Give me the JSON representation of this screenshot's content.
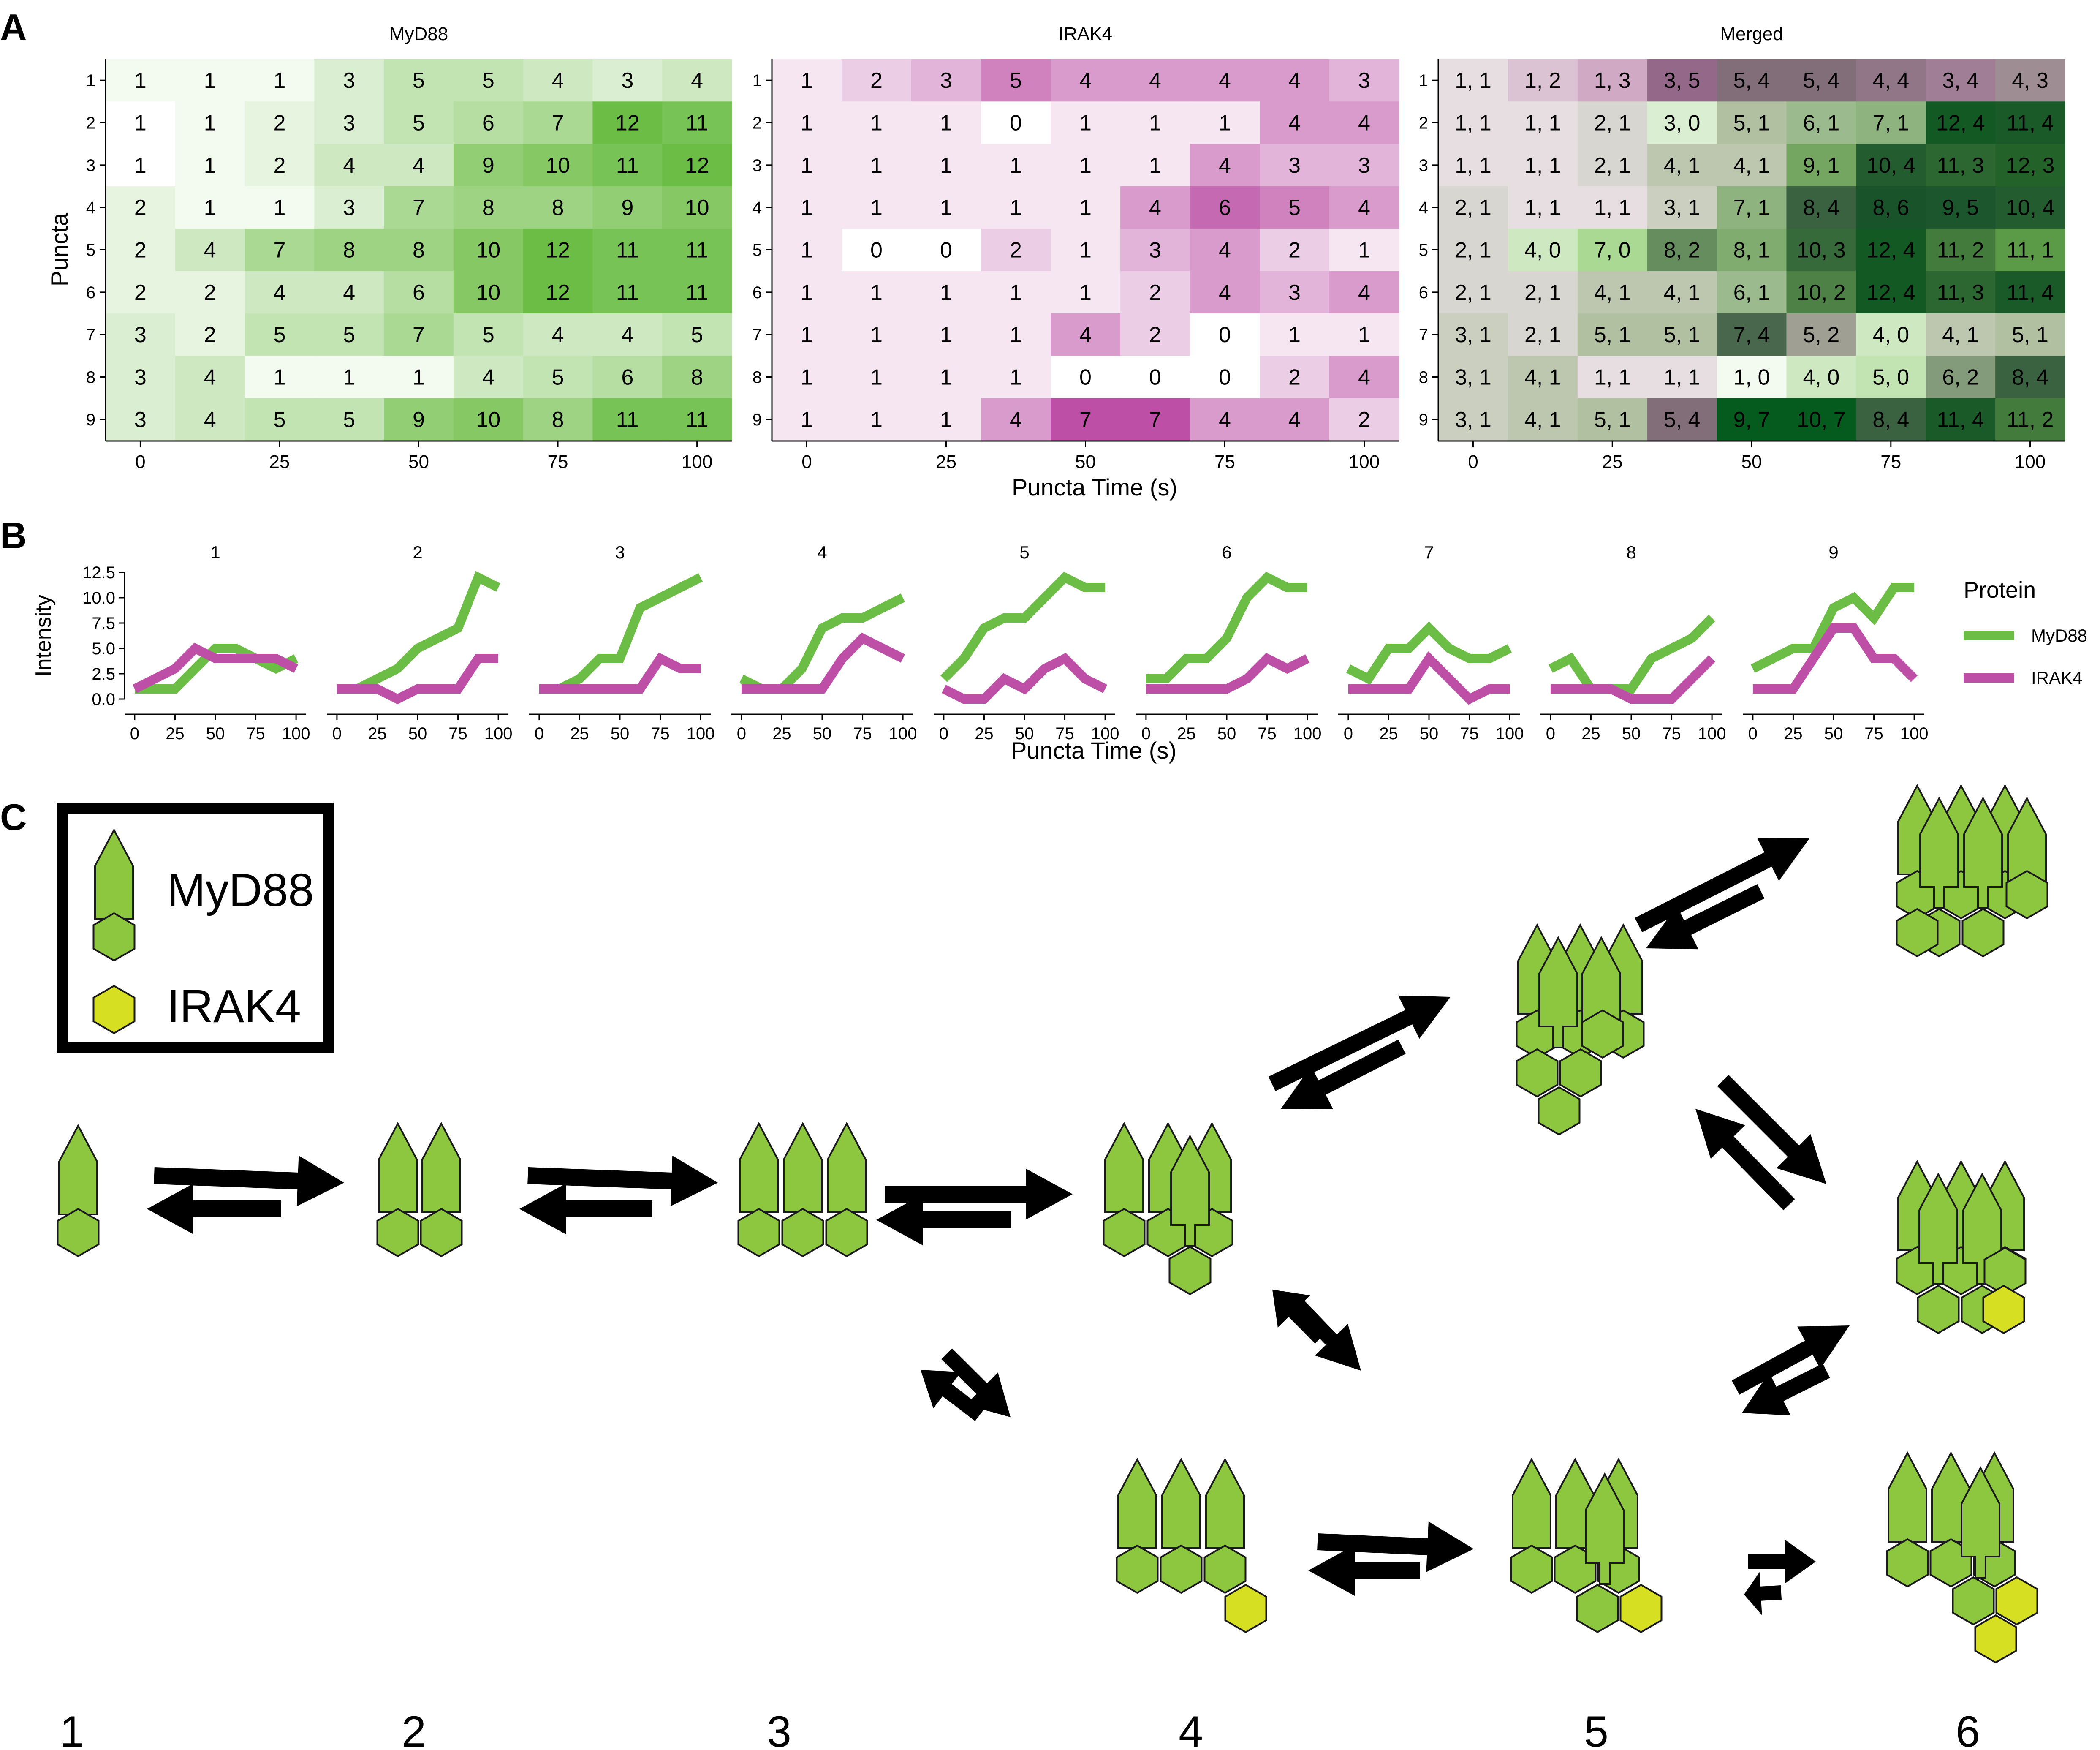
{
  "panels": {
    "A": {
      "letter": "A"
    },
    "B": {
      "letter": "B"
    },
    "C": {
      "letter": "C"
    }
  },
  "colors": {
    "myd88": "#6cbd45",
    "irak4": "#bd50a6",
    "cartoon_green": "#8dc63f",
    "cartoon_yellow": "#d7df23",
    "outline": "#1a1a1a"
  },
  "chart_data": [
    {
      "type": "heatmap",
      "title": "MyD88",
      "x": [
        0,
        12.5,
        25,
        37.5,
        50,
        62.5,
        75,
        87.5,
        100
      ],
      "x_ticks": [
        "0",
        "25",
        "50",
        "75",
        "100"
      ],
      "y": [
        "1",
        "2",
        "3",
        "4",
        "5",
        "6",
        "7",
        "8",
        "9"
      ],
      "xlim": [
        -6.25,
        106.25
      ],
      "values": [
        [
          1,
          1,
          1,
          3,
          5,
          5,
          4,
          3,
          4
        ],
        [
          1,
          1,
          2,
          3,
          5,
          6,
          7,
          12,
          11
        ],
        [
          1,
          1,
          2,
          4,
          4,
          9,
          10,
          11,
          12
        ],
        [
          2,
          1,
          1,
          3,
          7,
          8,
          8,
          9,
          10
        ],
        [
          2,
          4,
          7,
          8,
          8,
          10,
          12,
          11,
          11
        ],
        [
          2,
          2,
          4,
          4,
          6,
          10,
          12,
          11,
          11
        ],
        [
          3,
          2,
          5,
          5,
          7,
          5,
          4,
          4,
          5
        ],
        [
          3,
          4,
          1,
          1,
          1,
          4,
          5,
          6,
          8
        ],
        [
          3,
          4,
          5,
          5,
          9,
          10,
          8,
          11,
          11
        ]
      ],
      "cells_missing": [
        [
          1,
          0
        ],
        [
          2,
          0
        ]
      ]
    },
    {
      "type": "heatmap",
      "title": "IRAK4",
      "x": [
        0,
        12.5,
        25,
        37.5,
        50,
        62.5,
        75,
        87.5,
        100
      ],
      "x_ticks": [
        "0",
        "25",
        "50",
        "75",
        "100"
      ],
      "y": [
        "1",
        "2",
        "3",
        "4",
        "5",
        "6",
        "7",
        "8",
        "9"
      ],
      "xlim": [
        -6.25,
        106.25
      ],
      "values": [
        [
          1,
          2,
          3,
          5,
          4,
          4,
          4,
          4,
          3
        ],
        [
          1,
          1,
          1,
          0,
          1,
          1,
          1,
          4,
          4
        ],
        [
          1,
          1,
          1,
          1,
          1,
          1,
          4,
          3,
          3
        ],
        [
          1,
          1,
          1,
          1,
          1,
          4,
          6,
          5,
          4
        ],
        [
          1,
          0,
          0,
          2,
          1,
          3,
          4,
          2,
          1
        ],
        [
          1,
          1,
          1,
          1,
          1,
          2,
          4,
          3,
          4
        ],
        [
          1,
          1,
          1,
          1,
          4,
          2,
          0,
          1,
          1
        ],
        [
          1,
          1,
          1,
          1,
          0,
          0,
          0,
          2,
          4
        ],
        [
          1,
          1,
          1,
          4,
          7,
          7,
          4,
          4,
          2
        ]
      ]
    },
    {
      "type": "heatmap",
      "title": "Merged",
      "x": [
        0,
        12.5,
        25,
        37.5,
        50,
        62.5,
        75,
        87.5,
        100
      ],
      "x_ticks": [
        "0",
        "25",
        "50",
        "75",
        "100"
      ],
      "y": [
        "1",
        "2",
        "3",
        "4",
        "5",
        "6",
        "7",
        "8",
        "9"
      ],
      "xlim": [
        -6.25,
        106.25
      ],
      "xlabel": "Puncta Time (s)",
      "ylabel": "Puncta",
      "labels": [
        [
          "1, 1",
          "1, 2",
          "1, 3",
          "3, 5",
          "5, 4",
          "5, 4",
          "4, 4",
          "3, 4",
          "4, 3"
        ],
        [
          "1, 1",
          "1, 1",
          "2, 1",
          "3, 0",
          "5, 1",
          "6, 1",
          "7, 1",
          "12, 4",
          "11, 4"
        ],
        [
          "1, 1",
          "1, 1",
          "2, 1",
          "4, 1",
          "4, 1",
          "9, 1",
          "10, 4",
          "11, 3",
          "12, 3"
        ],
        [
          "2, 1",
          "1, 1",
          "1, 1",
          "3, 1",
          "7, 1",
          "8, 4",
          "8, 6",
          "9, 5",
          "10, 4"
        ],
        [
          "2, 1",
          "4, 0",
          "7, 0",
          "8, 2",
          "8, 1",
          "10, 3",
          "12, 4",
          "11, 2",
          "11, 1"
        ],
        [
          "2, 1",
          "2, 1",
          "4, 1",
          "4, 1",
          "6, 1",
          "10, 2",
          "12, 4",
          "11, 3",
          "11, 4"
        ],
        [
          "3, 1",
          "2, 1",
          "5, 1",
          "5, 1",
          "7, 4",
          "5, 2",
          "4, 0",
          "4, 1",
          "5, 1"
        ],
        [
          "3, 1",
          "4, 1",
          "1, 1",
          "1, 1",
          "1, 0",
          "4, 0",
          "5, 0",
          "6, 2",
          "8, 4"
        ],
        [
          "3, 1",
          "4, 1",
          "5, 1",
          "5, 4",
          "9, 7",
          "10, 7",
          "8, 4",
          "11, 4",
          "11, 2"
        ]
      ]
    },
    {
      "type": "line",
      "facets": [
        "1",
        "2",
        "3",
        "4",
        "5",
        "6",
        "7",
        "8",
        "9"
      ],
      "x": [
        0,
        12.5,
        25,
        37.5,
        50,
        62.5,
        75,
        87.5,
        100
      ],
      "x_ticks": [
        "0",
        "25",
        "50",
        "75",
        "100"
      ],
      "xlim": [
        -6.25,
        106.25
      ],
      "ylim": [
        0,
        12.5
      ],
      "y_ticks": [
        "0.0",
        "2.5",
        "5.0",
        "7.5",
        "10.0",
        "12.5"
      ],
      "xlabel": "Puncta Time (s)",
      "ylabel": "Intensity",
      "legend_title": "Protein",
      "legend_position": "right",
      "series": [
        {
          "name": "MyD88",
          "values": [
            [
              1,
              1,
              1,
              3,
              5,
              5,
              4,
              3,
              4
            ],
            [
              1,
              1,
              2,
              3,
              5,
              6,
              7,
              12,
              11
            ],
            [
              1,
              1,
              2,
              4,
              4,
              9,
              10,
              11,
              12
            ],
            [
              2,
              1,
              1,
              3,
              7,
              8,
              8,
              9,
              10
            ],
            [
              2,
              4,
              7,
              8,
              8,
              10,
              12,
              11,
              11
            ],
            [
              2,
              2,
              4,
              4,
              6,
              10,
              12,
              11,
              11
            ],
            [
              3,
              2,
              5,
              5,
              7,
              5,
              4,
              4,
              5
            ],
            [
              3,
              4,
              1,
              1,
              1,
              4,
              5,
              6,
              8
            ],
            [
              3,
              4,
              5,
              5,
              9,
              10,
              8,
              11,
              11
            ]
          ]
        },
        {
          "name": "IRAK4",
          "values": [
            [
              1,
              2,
              3,
              5,
              4,
              4,
              4,
              4,
              3
            ],
            [
              1,
              1,
              1,
              0,
              1,
              1,
              1,
              4,
              4
            ],
            [
              1,
              1,
              1,
              1,
              1,
              1,
              4,
              3,
              3
            ],
            [
              1,
              1,
              1,
              1,
              1,
              4,
              6,
              5,
              4
            ],
            [
              1,
              0,
              0,
              2,
              1,
              3,
              4,
              2,
              1
            ],
            [
              1,
              1,
              1,
              1,
              1,
              2,
              4,
              3,
              4
            ],
            [
              1,
              1,
              1,
              1,
              4,
              2,
              0,
              1,
              1
            ],
            [
              1,
              1,
              1,
              1,
              0,
              0,
              0,
              2,
              4
            ],
            [
              1,
              1,
              1,
              4,
              7,
              7,
              4,
              4,
              2
            ]
          ]
        }
      ]
    }
  ],
  "scheme": {
    "legend": [
      {
        "label": "MyD88",
        "icon": "myd88-icon"
      },
      {
        "label": "IRAK4",
        "icon": "irak4-hexagon-icon"
      }
    ],
    "columns": [
      "1",
      "2",
      "3",
      "4",
      "5",
      "6"
    ],
    "states": [
      {
        "id": "c1",
        "myd88": 1,
        "irak4": 0
      },
      {
        "id": "c2",
        "myd88": 2,
        "irak4": 0
      },
      {
        "id": "c3",
        "myd88": 3,
        "irak4": 0
      },
      {
        "id": "c4-top",
        "myd88": 4,
        "irak4": 0
      },
      {
        "id": "c4-bottom",
        "myd88": 3,
        "irak4": 1
      },
      {
        "id": "c5-top",
        "myd88": 5,
        "irak4": 0
      },
      {
        "id": "c5-bottom",
        "myd88": 4,
        "irak4": 1
      },
      {
        "id": "c6-top",
        "myd88": 6,
        "irak4": 0
      },
      {
        "id": "c6-middle",
        "myd88": 5,
        "irak4": 1
      },
      {
        "id": "c6-bottom",
        "myd88": 4,
        "irak4": 2
      }
    ]
  }
}
